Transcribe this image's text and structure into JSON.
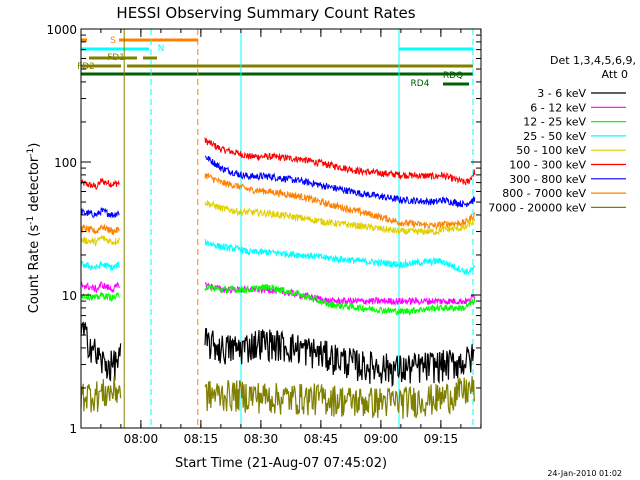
{
  "chart_data": {
    "type": "line",
    "title": "HESSI Observing Summary Count Rates",
    "ylabel": "Count Rate (s⁻¹ detector⁻¹)",
    "ylabel_main": "Count Rate (s",
    "ylabel_sup1": "-1",
    "ylabel_mid": " detector",
    "ylabel_sup2": "-1",
    "ylabel_end": ")",
    "xlabel": "Start Time (21-Aug-07 07:45:02)",
    "timestamp": "24-Jan-2010 01:02",
    "yscale": "log",
    "ylim": [
      1,
      1000
    ],
    "xlim_minutes": [
      0,
      100
    ],
    "yticks": [
      {
        "v": 1,
        "label": "1"
      },
      {
        "v": 10,
        "label": "10"
      },
      {
        "v": 100,
        "label": "100"
      },
      {
        "v": 1000,
        "label": "1000"
      }
    ],
    "xticks": [
      {
        "t": 14.97,
        "label": "08:00"
      },
      {
        "t": 29.97,
        "label": "08:15"
      },
      {
        "t": 44.97,
        "label": "08:30"
      },
      {
        "t": 59.97,
        "label": "08:45"
      },
      {
        "t": 74.97,
        "label": "09:00"
      },
      {
        "t": 89.97,
        "label": "09:15"
      }
    ],
    "legend": {
      "header1": "Det 1,3,4,5,6,9,",
      "header2": "Att 0",
      "entries": [
        {
          "label": "3 - 6 keV",
          "color": "#000000"
        },
        {
          "label": "6 - 12 keV",
          "color": "#ff00ff"
        },
        {
          "label": "12 - 25 keV",
          "color": "#00ff00"
        },
        {
          "label": "25 - 50 keV",
          "color": "#00ffff"
        },
        {
          "label": "50 - 100 keV",
          "color": "#e0d000"
        },
        {
          "label": "100 - 300 keV",
          "color": "#ff0000"
        },
        {
          "label": "300 - 800 keV",
          "color": "#0000ff"
        },
        {
          "label": "800 - 7000 keV",
          "color": "#ff8000"
        },
        {
          "label": "7000 - 20000 keV",
          "color": "#808000"
        }
      ]
    },
    "flag_bars": [
      {
        "label": "S",
        "color": "#ff8000",
        "segments": [
          [
            0,
            1.5
          ],
          [
            9.5,
            29.2
          ]
        ],
        "level": 0
      },
      {
        "label": "N",
        "color": "#00ffff",
        "segments": [
          [
            0,
            17
          ],
          [
            79.5,
            98
          ]
        ],
        "level": 1
      },
      {
        "label": "FD1",
        "color": "#808000",
        "segments": [
          [
            2,
            14
          ],
          [
            15.5,
            19
          ]
        ],
        "level": 2
      },
      {
        "label": "FD2",
        "color": "#808000",
        "segments": [
          [
            0,
            10
          ],
          [
            11.5,
            98
          ]
        ],
        "level": 3
      },
      {
        "label": "RDQ",
        "color": "#006000",
        "segments": [
          [
            0,
            98
          ]
        ],
        "level": 4
      },
      {
        "label": "RD4",
        "color": "#006000",
        "segments": [
          [
            90.5,
            97
          ]
        ],
        "level": 5
      }
    ],
    "vlines": [
      {
        "t": 10.8,
        "color": "#808000",
        "style": "solid"
      },
      {
        "t": 17.5,
        "color": "#00ffff",
        "style": "dashed"
      },
      {
        "t": 29.2,
        "color": "#ff8000",
        "style": "dashed"
      },
      {
        "t": 40.0,
        "color": "#00ffff",
        "style": "solid"
      },
      {
        "t": 79.5,
        "color": "#00ffff",
        "style": "solid"
      },
      {
        "t": 98.0,
        "color": "#00ffff",
        "style": "dashed"
      }
    ],
    "series": [
      {
        "name": "100 - 300 keV",
        "color": "#ff0000",
        "segments": [
          {
            "t": [
              0,
              4,
              5,
              8,
              9.6
            ],
            "y": [
              70,
              65,
              72,
              68,
              70
            ]
          },
          {
            "t": [
              31,
              35,
              40,
              42,
              47,
              55,
              62,
              70,
              80,
              89,
              90,
              96,
              97,
              98.5
            ],
            "y": [
              145,
              125,
              115,
              110,
              110,
              105,
              95,
              85,
              80,
              78,
              80,
              70,
              72,
              85
            ]
          }
        ]
      },
      {
        "name": "300 - 800 keV",
        "color": "#0000ff",
        "segments": [
          {
            "t": [
              0,
              4,
              5,
              8,
              9.6
            ],
            "y": [
              42,
              40,
              43,
              40,
              42
            ]
          },
          {
            "t": [
              31,
              35,
              40,
              42,
              47,
              55,
              62,
              70,
              80,
              89,
              90,
              96,
              97,
              98.5
            ],
            "y": [
              110,
              90,
              80,
              78,
              78,
              72,
              65,
              58,
              52,
              50,
              52,
              48,
              50,
              52
            ]
          }
        ]
      },
      {
        "name": "800 - 7000 keV",
        "color": "#ff8000",
        "segments": [
          {
            "t": [
              0,
              4,
              5,
              8,
              9.6
            ],
            "y": [
              32,
              30,
              33,
              30,
              31
            ]
          },
          {
            "t": [
              31,
              35,
              40,
              42,
              47,
              55,
              62,
              70,
              80,
              89,
              90,
              96,
              97,
              98.5
            ],
            "y": [
              80,
              70,
              65,
              62,
              60,
              55,
              48,
              42,
              35,
              33,
              34,
              35,
              37,
              40
            ]
          }
        ]
      },
      {
        "name": "50 - 100 keV",
        "color": "#e0d000",
        "segments": [
          {
            "t": [
              0,
              4,
              5,
              8,
              9.6
            ],
            "y": [
              26,
              25,
              27,
              25,
              26
            ]
          },
          {
            "t": [
              31,
              35,
              40,
              42,
              47,
              55,
              62,
              70,
              80,
              89,
              90,
              96,
              97,
              98.5
            ],
            "y": [
              50,
              45,
              42,
              42,
              41,
              38,
              35,
              33,
              30,
              30,
              31,
              32,
              34,
              36
            ]
          }
        ]
      },
      {
        "name": "25 - 50 keV",
        "color": "#00ffff",
        "segments": [
          {
            "t": [
              0,
              4,
              5,
              8,
              9.6
            ],
            "y": [
              17,
              16,
              17,
              16,
              17
            ]
          },
          {
            "t": [
              31,
              35,
              40,
              42,
              47,
              55,
              62,
              70,
              80,
              89,
              90,
              96,
              97,
              98.5
            ],
            "y": [
              25,
              23,
              22,
              21,
              21,
              20,
              19,
              18,
              17,
              18,
              18,
              15,
              15,
              16
            ]
          }
        ]
      },
      {
        "name": "6 - 12 keV",
        "color": "#ff00ff",
        "segments": [
          {
            "t": [
              0,
              4,
              5,
              8,
              9.6
            ],
            "y": [
              12,
              11,
              12,
              11,
              12
            ]
          },
          {
            "t": [
              31,
              35,
              40,
              42,
              47,
              55,
              62,
              70,
              80,
              89,
              90,
              96,
              97,
              98.5
            ],
            "y": [
              12,
              11,
              11,
              11,
              11,
              10,
              9,
              9,
              9,
              9,
              9,
              9,
              9,
              10
            ]
          }
        ]
      },
      {
        "name": "12 - 25 keV",
        "color": "#00ff00",
        "segments": [
          {
            "t": [
              0,
              4,
              5,
              8,
              9.6
            ],
            "y": [
              10,
              9.5,
              10,
              9.5,
              10
            ]
          },
          {
            "t": [
              31,
              35,
              40,
              42,
              47,
              55,
              62,
              70,
              80,
              89,
              90,
              96,
              97,
              98.5
            ],
            "y": [
              11.5,
              11,
              11,
              11,
              11.5,
              10,
              8.5,
              8,
              7.5,
              8,
              8,
              8,
              8.5,
              9
            ]
          }
        ]
      },
      {
        "name": "3 - 6 keV",
        "color": "#000000",
        "segments": [
          {
            "t": [
              0,
              2,
              4,
              6,
              8,
              10
            ],
            "y": [
              5.5,
              4.5,
              3.5,
              3,
              3,
              3.5
            ]
          },
          {
            "t": [
              31,
              35,
              40,
              45,
              55,
              62,
              70,
              80,
              89,
              90,
              96,
              98.5
            ],
            "y": [
              4.5,
              4,
              4,
              4.5,
              4,
              3.5,
              3,
              2.8,
              3,
              3,
              3.2,
              3.5
            ]
          }
        ]
      },
      {
        "name": "7000 - 20000 keV",
        "color": "#808000",
        "segments": [
          {
            "t": [
              0,
              4,
              8,
              10
            ],
            "y": [
              1.8,
              1.8,
              1.9,
              2
            ]
          },
          {
            "t": [
              31,
              40,
              50,
              60,
              70,
              80,
              90,
              98.5
            ],
            "y": [
              1.8,
              1.8,
              1.7,
              1.7,
              1.6,
              1.6,
              1.7,
              2
            ]
          }
        ]
      }
    ]
  }
}
